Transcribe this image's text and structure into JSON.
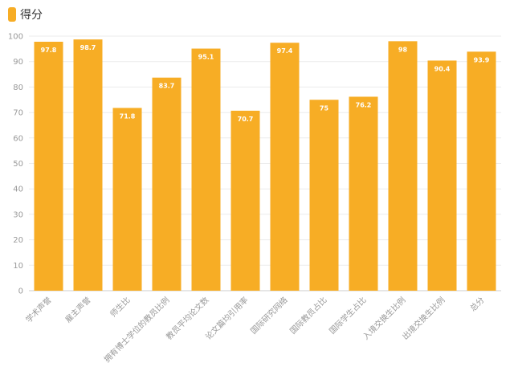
{
  "legend": {
    "label": "得分",
    "color": "#f7ad25"
  },
  "chart_data": {
    "type": "bar",
    "title": "",
    "xlabel": "",
    "ylabel": "",
    "series": [
      {
        "name": "得分",
        "values": [
          97.8,
          98.7,
          71.8,
          83.7,
          95.1,
          70.7,
          97.4,
          75,
          76.2,
          98,
          90.4,
          93.9
        ]
      }
    ],
    "categories": [
      "学术声誉",
      "雇主声誉",
      "师生比",
      "拥有博士学位的教员比例",
      "教员平均论文数",
      "论文篇均引用率",
      "国际研究网络",
      "国际教员占比",
      "国际学生占比",
      "入境交换生比例",
      "出境交换生比例",
      "总分"
    ],
    "data_labels": [
      "97.8",
      "98.7",
      "71.8",
      "83.7",
      "95.1",
      "70.7",
      "97.4",
      "75",
      "76.2",
      "98",
      "90.4",
      "93.9"
    ],
    "ylim": [
      0,
      100
    ],
    "yticks": [
      0,
      10,
      20,
      30,
      40,
      50,
      60,
      70,
      80,
      90,
      100
    ],
    "grid": true,
    "legend_position": "top-left",
    "bar_color": "#f7ad25",
    "grid_color": "#ebebeb"
  }
}
